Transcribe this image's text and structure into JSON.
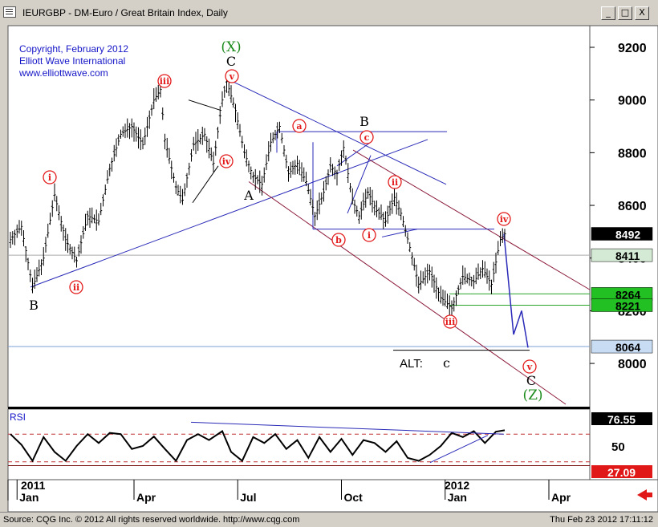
{
  "window": {
    "title": "IEURGBP - DM-Euro / Great Britain Index, Daily"
  },
  "buttons": {
    "minimize": "_",
    "maximize": "□",
    "close": "X"
  },
  "copyright": [
    "Copyright, February 2012",
    "Elliott Wave International",
    "www.elliottwave.com"
  ],
  "status": {
    "left": "Source: CQG Inc. © 2012 All rights reserved worldwide. http://www.cqg.com",
    "right": "Thu Feb 23 2012 17:11:12"
  },
  "colors": {
    "wave_red": "#e31a1a",
    "wave_green": "#1e8c1e",
    "channel_blue": "#2a2ab8",
    "channel_maroon": "#8b1a3a",
    "price_bar": "#000000"
  },
  "chart_data": [
    {
      "type": "line",
      "title": "",
      "ylim": [
        7820,
        9300
      ],
      "y_ticks": [
        "9200",
        "9000",
        "8800",
        "8600",
        "8400",
        "8200",
        "8000"
      ],
      "x_ticks": [
        "Jan",
        "Apr",
        "Jul",
        "Oct",
        "Jan",
        "Apr"
      ],
      "year_labels": [
        "2011",
        "2012"
      ],
      "series": [
        {
          "values": [
            [
              0,
              8470
            ],
            [
              5,
              8520
            ],
            [
              10,
              8290
            ],
            [
              15,
              8400
            ],
            [
              20,
              8640
            ],
            [
              25,
              8470
            ],
            [
              30,
              8390
            ],
            [
              35,
              8560
            ],
            [
              40,
              8540
            ],
            [
              45,
              8740
            ],
            [
              50,
              8870
            ],
            [
              55,
              8900
            ],
            [
              60,
              8830
            ],
            [
              65,
              9000
            ],
            [
              68,
              9040
            ],
            [
              70,
              8850
            ],
            [
              75,
              8670
            ],
            [
              78,
              8620
            ],
            [
              83,
              8830
            ],
            [
              88,
              8870
            ],
            [
              92,
              8760
            ],
            [
              96,
              9000
            ],
            [
              98,
              9070
            ],
            [
              102,
              8960
            ],
            [
              106,
              8800
            ],
            [
              110,
              8710
            ],
            [
              114,
              8680
            ],
            [
              118,
              8840
            ],
            [
              122,
              8900
            ],
            [
              126,
              8720
            ],
            [
              130,
              8760
            ],
            [
              134,
              8690
            ],
            [
              138,
              8560
            ],
            [
              142,
              8650
            ],
            [
              145,
              8750
            ],
            [
              148,
              8720
            ],
            [
              151,
              8820
            ],
            [
              155,
              8620
            ],
            [
              158,
              8560
            ],
            [
              162,
              8650
            ],
            [
              166,
              8580
            ],
            [
              170,
              8540
            ],
            [
              174,
              8630
            ],
            [
              177,
              8570
            ],
            [
              181,
              8440
            ],
            [
              185,
              8300
            ],
            [
              190,
              8350
            ],
            [
              195,
              8250
            ],
            [
              200,
              8210
            ],
            [
              205,
              8330
            ],
            [
              210,
              8310
            ],
            [
              214,
              8360
            ],
            [
              218,
              8300
            ],
            [
              222,
              8470
            ],
            [
              224,
              8492
            ]
          ]
        }
      ],
      "price_tags": [
        "8492",
        "8411",
        "8264",
        "8221",
        "8064"
      ],
      "wave_labels": {
        "circled": [
          "i",
          "ii",
          "iii",
          "iv",
          "v",
          "a",
          "b",
          "c",
          "i",
          "ii",
          "iii",
          "iv",
          "v"
        ],
        "plain": [
          "B",
          "C",
          "A",
          "B",
          "C"
        ],
        "degree": [
          "(X)",
          "(Z)"
        ],
        "alt": "ALT:",
        "alt_wave": "c"
      }
    },
    {
      "type": "line",
      "title": "RSI",
      "y_ticks": [
        "76.55",
        "50",
        "27.09"
      ],
      "series": [
        {
          "name": "RSI",
          "values": [
            [
              0,
              70
            ],
            [
              5,
              52
            ],
            [
              10,
              25
            ],
            [
              15,
              65
            ],
            [
              20,
              40
            ],
            [
              25,
              25
            ],
            [
              30,
              50
            ],
            [
              35,
              70
            ],
            [
              40,
              55
            ],
            [
              45,
              72
            ],
            [
              50,
              70
            ],
            [
              55,
              45
            ],
            [
              60,
              50
            ],
            [
              65,
              66
            ],
            [
              70,
              45
            ],
            [
              75,
              25
            ],
            [
              80,
              60
            ],
            [
              85,
              70
            ],
            [
              90,
              60
            ],
            [
              96,
              75
            ],
            [
              100,
              40
            ],
            [
              105,
              25
            ],
            [
              110,
              65
            ],
            [
              115,
              55
            ],
            [
              120,
              70
            ],
            [
              125,
              45
            ],
            [
              130,
              60
            ],
            [
              135,
              30
            ],
            [
              140,
              65
            ],
            [
              145,
              40
            ],
            [
              150,
              62
            ],
            [
              155,
              35
            ],
            [
              160,
              60
            ],
            [
              165,
              55
            ],
            [
              170,
              40
            ],
            [
              175,
              58
            ],
            [
              180,
              30
            ],
            [
              185,
              25
            ],
            [
              190,
              35
            ],
            [
              195,
              50
            ],
            [
              200,
              72
            ],
            [
              205,
              65
            ],
            [
              210,
              75
            ],
            [
              215,
              55
            ],
            [
              220,
              74
            ],
            [
              224,
              76.55
            ]
          ]
        }
      ]
    }
  ]
}
